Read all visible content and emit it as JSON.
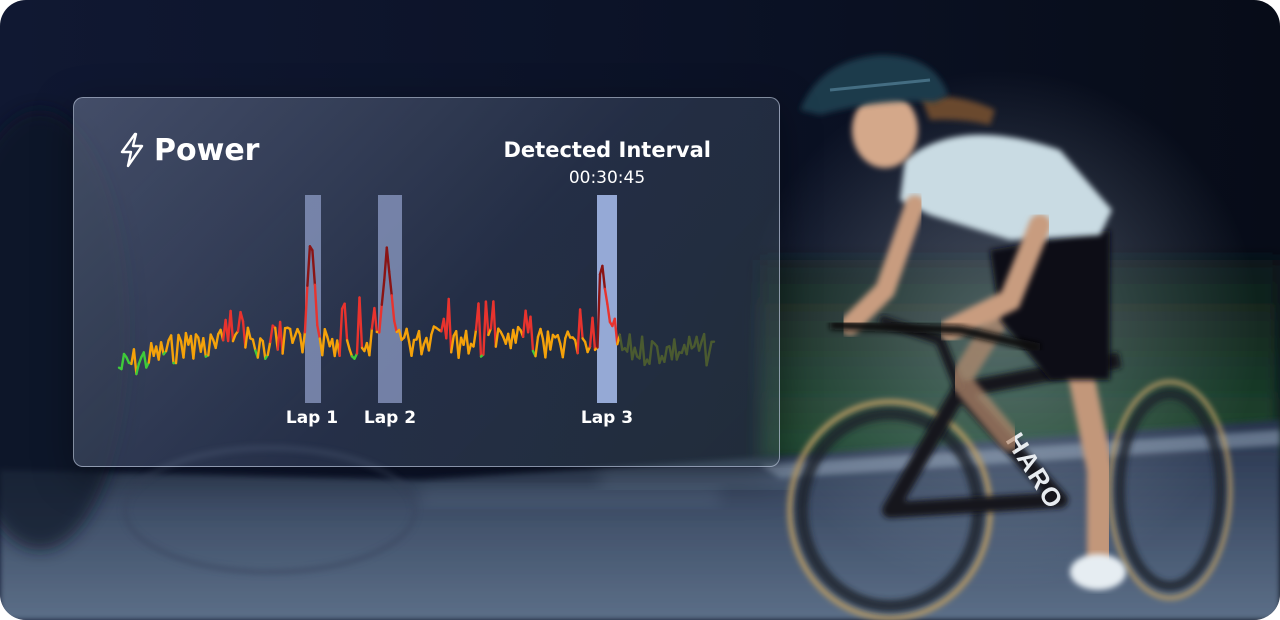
{
  "widget": {
    "title": "Power",
    "title_icon": "lightning-bolt-icon",
    "interval_label": "Detected Interval",
    "interval_time": "00:30:45"
  },
  "chart_data": {
    "type": "line",
    "title": "Power",
    "laps": [
      {
        "name": "Lap 1",
        "highlight": "#8e9cc6"
      },
      {
        "name": "Lap 2",
        "highlight": "#8e9cc6"
      },
      {
        "name": "Lap 3",
        "highlight": "#a9bff0"
      }
    ],
    "colors": {
      "low": "#28b4c8",
      "moderate": "#3fca3a",
      "medium": "#f5a20a",
      "high": "#e8332e",
      "peak": "#8a1414"
    }
  },
  "background": {
    "scene": "cyclist riding a road bike at night",
    "bike_brand": "HARO"
  }
}
